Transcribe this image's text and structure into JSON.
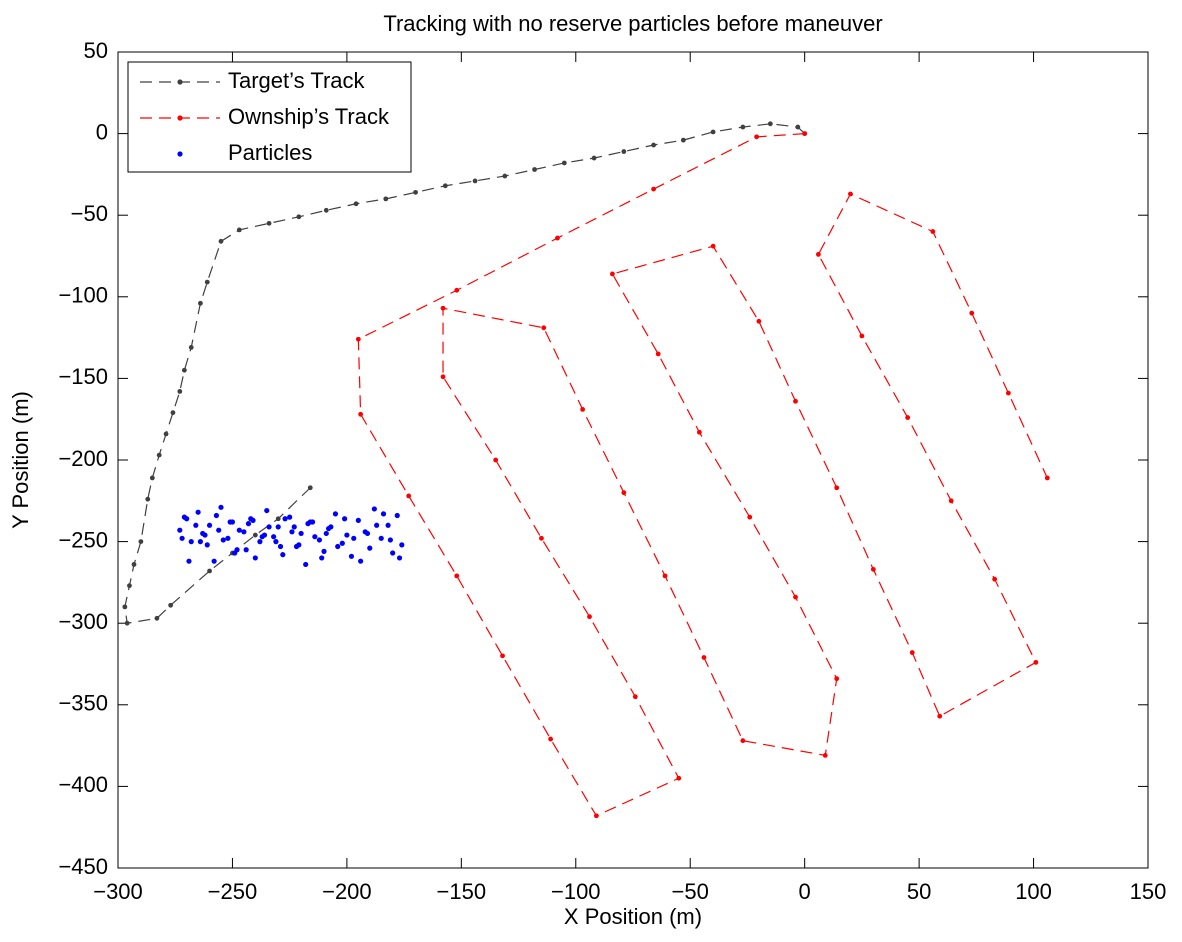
{
  "chart_data": {
    "type": "line",
    "title": "Tracking with no reserve particles before maneuver",
    "xlabel": "X Position (m)",
    "ylabel": "Y Position (m)",
    "xlim": [
      -300,
      150
    ],
    "ylim": [
      -450,
      50
    ],
    "xticks": [
      {
        "value": -300,
        "label": "−300"
      },
      {
        "value": -250,
        "label": "−250"
      },
      {
        "value": -200,
        "label": "−200"
      },
      {
        "value": -150,
        "label": "−150"
      },
      {
        "value": -100,
        "label": "−100"
      },
      {
        "value": -50,
        "label": "−50"
      },
      0,
      50,
      100,
      150
    ],
    "yticks": [
      50,
      0,
      {
        "value": -50,
        "label": "−50"
      },
      {
        "value": -100,
        "label": "−100"
      },
      {
        "value": -150,
        "label": "−150"
      },
      {
        "value": -200,
        "label": "−200"
      },
      {
        "value": -250,
        "label": "−250"
      },
      {
        "value": -300,
        "label": "−300"
      },
      {
        "value": -350,
        "label": "−350"
      },
      {
        "value": -400,
        "label": "−400"
      },
      {
        "value": -450,
        "label": "−450"
      }
    ],
    "grid": false,
    "legend": "upper left",
    "series": [
      {
        "name": "Target’s Track",
        "color": "#404040",
        "linestyle": "dashed",
        "x": [
          0,
          -3,
          -15,
          -27,
          -40,
          -53,
          -66,
          -79,
          -92,
          -105,
          -118,
          -131,
          -144,
          -157,
          -170,
          -183,
          -196,
          -209,
          -221,
          -234,
          -247,
          -255,
          -261,
          -264,
          -268,
          -271,
          -273,
          -276,
          -279,
          -282,
          -285,
          -287,
          -290,
          -293,
          -295,
          -297,
          -296,
          -283,
          -277,
          -260,
          -250,
          -240,
          -230,
          -216
        ],
        "values": [
          0,
          4,
          6,
          4,
          1,
          -4,
          -7,
          -11,
          -15,
          -18,
          -22,
          -26,
          -29,
          -32,
          -36,
          -40,
          -43,
          -47,
          -51,
          -55,
          -59,
          -66,
          -91,
          -104,
          -131,
          -145,
          -158,
          -171,
          -184,
          -197,
          -211,
          -224,
          -250,
          -264,
          -277,
          -290,
          -300,
          -297,
          -289,
          -268,
          -257,
          -246,
          -236,
          -217
        ]
      },
      {
        "name": "Ownship’s Track",
        "color": "#ff0000",
        "linestyle": "dashed",
        "x": [
          0,
          -21,
          -66,
          -108,
          -152,
          -195,
          -194,
          -173,
          -152,
          -132,
          -111,
          -91,
          -55,
          -74,
          -94,
          -115,
          -135,
          -158,
          -158,
          -114,
          -97,
          -79,
          -61,
          -44,
          -27,
          9,
          14,
          -4,
          -24,
          -46,
          -64,
          -84,
          -40,
          -20,
          -4,
          14,
          30,
          47,
          59,
          101,
          83,
          64,
          45,
          25,
          6,
          20,
          56,
          73,
          89,
          106
        ],
        "values": [
          0,
          -2,
          -34,
          -64,
          -96,
          -126,
          -172,
          -222,
          -271,
          -320,
          -371,
          -418,
          -395,
          -345,
          -296,
          -248,
          -200,
          -149,
          -107,
          -119,
          -169,
          -220,
          -271,
          -321,
          -372,
          -381,
          -334,
          -284,
          -235,
          -183,
          -135,
          -86,
          -69,
          -115,
          -164,
          -217,
          -267,
          -318,
          -357,
          -324,
          -273,
          -225,
          -174,
          -124,
          -74,
          -37,
          -60,
          -110,
          -159,
          -211
        ]
      },
      {
        "name": "Particles",
        "color": "#0000ff",
        "linestyle": "none",
        "x": [
          -273,
          -270,
          -268,
          -265,
          -262,
          -260,
          -258,
          -255,
          -252,
          -250,
          -248,
          -245,
          -242,
          -240,
          -238,
          -235,
          -232,
          -230,
          -228,
          -225,
          -222,
          -220,
          -218,
          -215,
          -212,
          -210,
          -208,
          -205,
          -202,
          -200,
          -198,
          -195,
          -192,
          -190,
          -188,
          -185,
          -182,
          -180,
          -178,
          -176,
          -272,
          -269,
          -266,
          -263,
          -261,
          -257,
          -254,
          -251,
          -247,
          -244,
          -241,
          -237,
          -234,
          -231,
          -227,
          -224,
          -221,
          -217,
          -214,
          -211,
          -207,
          -204,
          -201,
          -197,
          -194,
          -191,
          -187,
          -184,
          -181,
          -177,
          -271,
          -264,
          -256,
          -249,
          -243,
          -236,
          -229,
          -223,
          -216,
          -209
        ],
        "values": [
          -243,
          -236,
          -250,
          -232,
          -246,
          -240,
          -262,
          -229,
          -248,
          -238,
          -255,
          -244,
          -236,
          -260,
          -250,
          -231,
          -247,
          -241,
          -258,
          -235,
          -253,
          -245,
          -264,
          -238,
          -249,
          -256,
          -242,
          -233,
          -251,
          -246,
          -259,
          -237,
          -244,
          -254,
          -230,
          -248,
          -240,
          -257,
          -234,
          -252,
          -248,
          -262,
          -240,
          -245,
          -252,
          -234,
          -249,
          -238,
          -243,
          -255,
          -237,
          -247,
          -241,
          -250,
          -236,
          -244,
          -252,
          -239,
          -247,
          -260,
          -241,
          -253,
          -236,
          -248,
          -262,
          -245,
          -240,
          -233,
          -249,
          -260,
          -235,
          -250,
          -243,
          -257,
          -239,
          -246,
          -253,
          -241,
          -238,
          -245
        ]
      }
    ]
  }
}
